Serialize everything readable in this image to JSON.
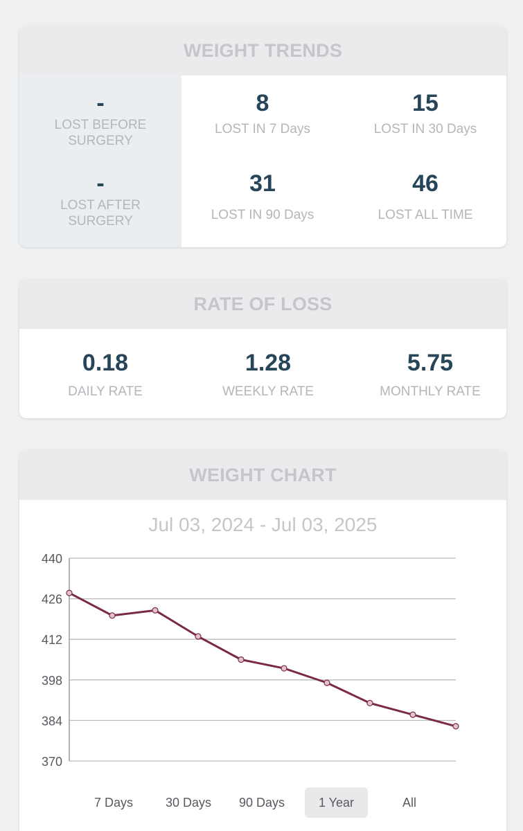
{
  "weight_trends": {
    "title": "WEIGHT TRENDS",
    "lost_before_surgery": {
      "value": "-",
      "label_line1": "LOST BEFORE",
      "label_line2": "SURGERY"
    },
    "lost_after_surgery": {
      "value": "-",
      "label_line1": "LOST AFTER",
      "label_line2": "SURGERY"
    },
    "lost_7_days": {
      "value": "8",
      "label": "LOST IN 7 Days"
    },
    "lost_30_days": {
      "value": "15",
      "label": "LOST IN 30 Days"
    },
    "lost_90_days": {
      "value": "31",
      "label": "LOST IN 90 Days"
    },
    "lost_all_time": {
      "value": "46",
      "label": "LOST ALL TIME"
    }
  },
  "rate_of_loss": {
    "title": "RATE OF LOSS",
    "daily": {
      "value": "0.18",
      "label": "DAILY RATE"
    },
    "weekly": {
      "value": "1.28",
      "label": "WEEKLY RATE"
    },
    "monthly": {
      "value": "5.75",
      "label": "MONTHLY RATE"
    }
  },
  "weight_chart": {
    "title": "WEIGHT CHART",
    "date_range": "Jul 03, 2024 - Jul 03, 2025",
    "tabs": [
      {
        "label": "7 Days",
        "active": false
      },
      {
        "label": "30 Days",
        "active": false
      },
      {
        "label": "90 Days",
        "active": false
      },
      {
        "label": "1 Year",
        "active": true
      },
      {
        "label": "All",
        "active": false
      }
    ]
  },
  "colors": {
    "line": "#7a2a45",
    "point_fill": "#e3c3cc",
    "grid": "#b9bbbf",
    "value_text": "#264559"
  },
  "chart_data": {
    "type": "line",
    "title": "",
    "xlabel": "",
    "ylabel": "",
    "ylim": [
      370,
      440
    ],
    "yticks": [
      "440",
      "426",
      "412",
      "398",
      "384",
      "370"
    ],
    "x": [
      1,
      2,
      3,
      4,
      5,
      6,
      7,
      8,
      9,
      10
    ],
    "series": [
      {
        "values": [
          428,
          420.2,
          422,
          413,
          405,
          402,
          397,
          390,
          386,
          382
        ]
      }
    ],
    "grid": true,
    "legend": "none"
  }
}
